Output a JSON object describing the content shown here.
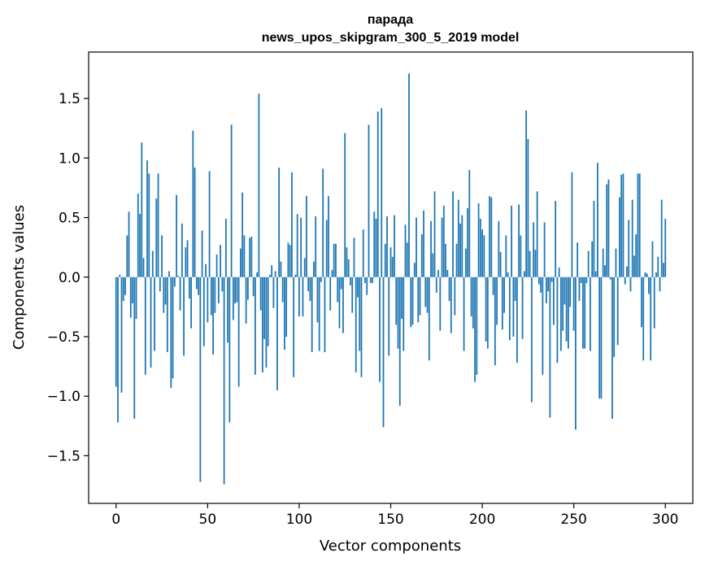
{
  "chart_data": {
    "type": "bar",
    "title": "парада",
    "subtitle": "news_upos_skipgram_300_5_2019 model",
    "xlabel": "Vector components",
    "ylabel": "Components values",
    "xlim": [
      -15,
      315
    ],
    "ylim": [
      -1.9,
      1.89
    ],
    "x_ticks": [
      0,
      50,
      100,
      150,
      200,
      250,
      300
    ],
    "x_tick_labels": [
      "0",
      "50",
      "100",
      "150",
      "200",
      "250",
      "300"
    ],
    "y_ticks": [
      1.5,
      1.0,
      0.5,
      0.0,
      -0.5,
      -1.0,
      -1.5
    ],
    "y_tick_labels": [
      "1.5",
      "1.0",
      "0.5",
      "0.0",
      "−0.5",
      "−1.0",
      "−1.5"
    ],
    "bar_color": "#1f77b4",
    "grid": false,
    "values": [
      -0.92,
      -1.22,
      0.02,
      -0.97,
      -0.2,
      -0.15,
      0.35,
      0.55,
      -0.34,
      -0.22,
      -1.19,
      -0.35,
      0.7,
      0.53,
      1.13,
      0.16,
      -0.82,
      0.98,
      0.87,
      -0.76,
      0.22,
      -0.62,
      0.66,
      0.87,
      -0.12,
      0.35,
      -0.3,
      -0.23,
      -0.63,
      0.05,
      -0.93,
      -0.85,
      -0.08,
      0.69,
      0.01,
      -0.28,
      0.45,
      -0.66,
      0.25,
      0.31,
      -0.18,
      -0.43,
      1.23,
      0.92,
      -0.1,
      -0.15,
      -1.72,
      0.39,
      -0.58,
      0.11,
      -0.38,
      0.89,
      -0.32,
      -0.65,
      -0.3,
      0.19,
      -0.22,
      0.27,
      -0.12,
      -1.74,
      0.49,
      -0.55,
      -1.22,
      1.28,
      -0.36,
      -0.22,
      -0.21,
      -0.92,
      0.24,
      0.71,
      0.35,
      -0.39,
      -0.19,
      0.33,
      0.34,
      -0.16,
      -0.82,
      0.04,
      1.54,
      -0.28,
      -0.8,
      -0.52,
      -0.76,
      -0.58,
      0.02,
      0.1,
      -0.26,
      0.05,
      -0.95,
      0.92,
      0.13,
      -0.21,
      -0.61,
      -0.5,
      0.29,
      0.27,
      0.88,
      -0.84,
      0.02,
      0.53,
      -0.33,
      0.5,
      -0.33,
      0.16,
      0.68,
      -0.12,
      -0.2,
      -0.63,
      0.13,
      0.51,
      -0.38,
      -0.62,
      -0.04,
      0.91,
      -0.63,
      0.48,
      0.68,
      -0.28,
      0.06,
      0.28,
      0.28,
      -0.21,
      -0.43,
      -0.1,
      -0.47,
      1.21,
      0.25,
      0.15,
      -0.07,
      -0.3,
      0.33,
      -0.8,
      -0.17,
      -0.62,
      -0.84,
      0.4,
      -0.05,
      -0.15,
      1.28,
      -0.05,
      -0.05,
      0.55,
      0.49,
      1.39,
      -0.88,
      1.42,
      -1.26,
      0.28,
      0.51,
      -0.66,
      0.25,
      0.17,
      0.52,
      -0.4,
      -0.6,
      -1.08,
      -0.35,
      -0.62,
      0.44,
      0.29,
      1.71,
      -0.42,
      -0.4,
      0.12,
      0.5,
      -0.38,
      -0.32,
      0.36,
      0.56,
      -0.25,
      -0.3,
      -0.7,
      0.47,
      0.2,
      0.72,
      -0.13,
      0.06,
      -0.45,
      0.5,
      0.6,
      0.28,
      0.06,
      -0.2,
      -0.47,
      0.72,
      -0.32,
      0.28,
      0.65,
      0.45,
      0.52,
      -0.62,
      0.24,
      0.58,
      0.9,
      -0.33,
      -0.43,
      -0.88,
      -0.82,
      0.62,
      0.49,
      0.4,
      0.35,
      -0.54,
      -0.6,
      0.68,
      0.67,
      -0.15,
      -0.74,
      -0.4,
      0.47,
      0.21,
      -0.44,
      -0.3,
      0.35,
      0.04,
      -0.53,
      0.6,
      -0.5,
      -0.2,
      -0.72,
      0.61,
      0.35,
      -0.52,
      0.05,
      1.4,
      1.16,
      0.22,
      -1.05,
      0.46,
      0.23,
      0.72,
      -0.06,
      -0.13,
      -0.82,
      0.46,
      -0.22,
      -0.12,
      -1.18,
      -0.04,
      -0.4,
      0.64,
      -0.72,
      0.08,
      -0.62,
      -0.45,
      -0.23,
      -0.54,
      -0.6,
      -0.25,
      0.88,
      -0.45,
      -1.28,
      0.29,
      -0.2,
      -0.05,
      -0.6,
      -0.6,
      -0.05,
      0.22,
      -0.62,
      0.3,
      0.64,
      0.05,
      0.96,
      -1.02,
      -1.02,
      0.24,
      0.1,
      0.78,
      0.82,
      -0.02,
      -1.19,
      -0.67,
      0.24,
      -0.57,
      0.67,
      0.86,
      0.87,
      -0.06,
      0.09,
      0.48,
      -0.12,
      0.65,
      0.18,
      0.36,
      0.87,
      0.87,
      -0.42,
      -0.7,
      0.04,
      0.03,
      -0.14,
      -0.7,
      0.3,
      -0.43,
      0.04,
      0.17,
      -0.12,
      0.65,
      0.12,
      0.49
    ]
  }
}
